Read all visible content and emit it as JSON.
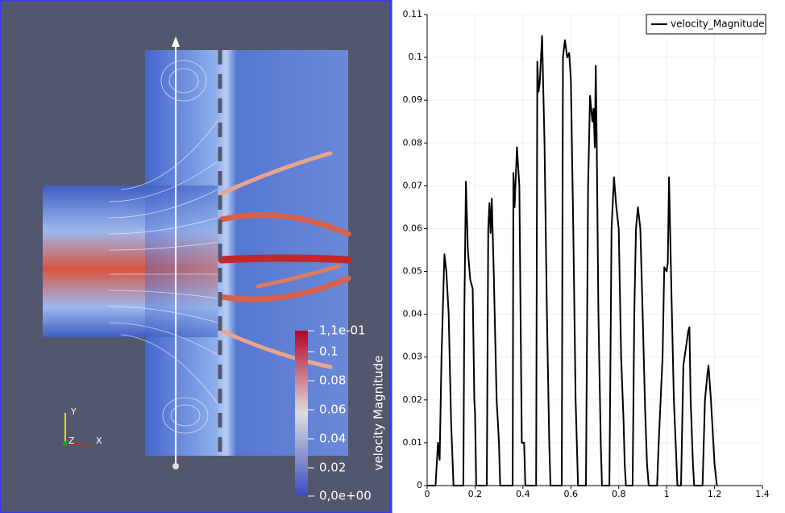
{
  "render_view": {
    "colorbar": {
      "title": "velocity Magnitude",
      "labels": [
        "1,1e-01",
        "0.1",
        "0.08",
        "0.06",
        "0.04",
        "0.02",
        "0,0e+00"
      ]
    },
    "axes": {
      "x": "X",
      "y": "Y",
      "z": "Z"
    }
  },
  "chart_data": {
    "type": "line",
    "x": [
      0,
      0.035,
      0.045,
      0.052,
      0.06,
      0.072,
      0.08,
      0.09,
      0.1,
      0.11,
      0.14,
      0.151,
      0.155,
      0.162,
      0.17,
      0.18,
      0.19,
      0.197,
      0.2,
      0.205,
      0.24,
      0.249,
      0.255,
      0.26,
      0.265,
      0.27,
      0.278,
      0.29,
      0.295,
      0.3,
      0.305,
      0.34,
      0.357,
      0.36,
      0.365,
      0.375,
      0.385,
      0.39,
      0.395,
      0.4,
      0.405,
      0.41,
      0.44,
      0.455,
      0.46,
      0.465,
      0.47,
      0.48,
      0.49,
      0.5,
      0.51,
      0.515,
      0.56,
      0.562,
      0.567,
      0.575,
      0.585,
      0.593,
      0.6,
      0.61,
      0.62,
      0.63,
      0.66,
      0.663,
      0.672,
      0.68,
      0.69,
      0.695,
      0.7,
      0.704,
      0.708,
      0.715,
      0.725,
      0.73,
      0.75,
      0.761,
      0.77,
      0.78,
      0.79,
      0.8,
      0.81,
      0.82,
      0.825,
      0.83,
      0.858,
      0.865,
      0.872,
      0.88,
      0.89,
      0.9,
      0.91,
      0.918,
      0.925,
      0.96,
      0.967,
      0.975,
      0.983,
      0.99,
      1.0,
      1.005,
      1.01,
      1.02,
      1.03,
      1.04,
      1.045,
      1.06,
      1.07,
      1.08,
      1.09,
      1.095,
      1.1,
      1.11,
      1.115,
      1.15,
      1.16,
      1.17,
      1.175,
      1.185,
      1.195,
      1.2,
      1.21
    ],
    "series": [
      {
        "name": "velocity_Magnitude",
        "color": "#000000",
        "values": [
          0,
          0,
          0.01,
          0.006,
          0.03,
          0.054,
          0.05,
          0.04,
          0.015,
          0,
          0,
          0,
          0.04,
          0.071,
          0.055,
          0.048,
          0.046,
          0.02,
          0.017,
          0,
          0,
          0,
          0.06,
          0.066,
          0.059,
          0.067,
          0.05,
          0.02,
          0.015,
          0.01,
          0,
          0,
          0,
          0.073,
          0.065,
          0.079,
          0.07,
          0.04,
          0.01,
          0.01,
          0.01,
          0,
          0,
          0,
          0.099,
          0.092,
          0.094,
          0.105,
          0.08,
          0.04,
          0.01,
          0,
          0,
          0,
          0.1,
          0.104,
          0.1,
          0.101,
          0.095,
          0.06,
          0.02,
          0,
          0,
          0,
          0.07,
          0.091,
          0.085,
          0.088,
          0.079,
          0.098,
          0.08,
          0.04,
          0.01,
          0,
          0,
          0,
          0.06,
          0.072,
          0.065,
          0.06,
          0.03,
          0.015,
          0.005,
          0,
          0,
          0.04,
          0.06,
          0.065,
          0.06,
          0.04,
          0.018,
          0.005,
          0,
          0,
          0.01,
          0.02,
          0.03,
          0.051,
          0.05,
          0.052,
          0.072,
          0.045,
          0.02,
          0.007,
          0,
          0,
          0.028,
          0.032,
          0.036,
          0.037,
          0.02,
          0.005,
          0,
          0,
          0.02,
          0.026,
          0.028,
          0.02,
          0.01,
          0.005,
          0
        ]
      }
    ],
    "xlim": [
      0,
      1.4
    ],
    "xticks": [
      0,
      0.2,
      0.4,
      0.6,
      0.8,
      1,
      1.2,
      1.4
    ],
    "ylim": [
      0,
      0.11
    ],
    "yticks": [
      0,
      0.01,
      0.02,
      0.03,
      0.04,
      0.05,
      0.06,
      0.07,
      0.08,
      0.09,
      0.1,
      0.11
    ],
    "grid": true,
    "legend": "upper right"
  }
}
